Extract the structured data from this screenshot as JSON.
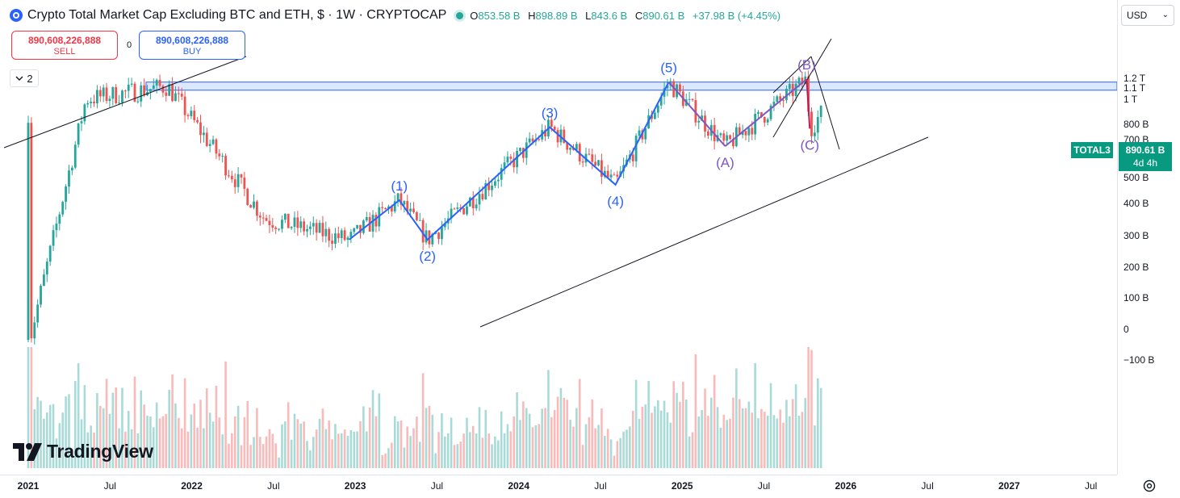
{
  "header": {
    "title": "Crypto Total Market Cap Excluding BTC and ETH, $ · 1W · CRYPTOCAP",
    "ohlc": [
      {
        "key": "O",
        "value": "853.58 B"
      },
      {
        "key": "H",
        "value": "898.89 B"
      },
      {
        "key": "L",
        "value": "843.6 B"
      },
      {
        "key": "C",
        "value": "890.61 B"
      }
    ],
    "change": "+37.98 B (+4.45%)"
  },
  "trade": {
    "sell_price": "890,608,226,888",
    "sell_label": "SELL",
    "spread": "0",
    "buy_price": "890,608,226,888",
    "buy_label": "BUY"
  },
  "indicators_toggle": {
    "icon": "chevron-down-icon",
    "count": "2"
  },
  "branding": {
    "logo_text": "TradingView",
    "logo_icon": "tradingview-logo-icon"
  },
  "price_scale": {
    "currency": "USD",
    "ticks": [
      "1.2 T",
      "1.1 T",
      "1 T",
      "800 B",
      "700 B",
      "600 B",
      "500 B",
      "400 B",
      "300 B",
      "200 B",
      "100 B",
      "0",
      "−100 B"
    ]
  },
  "last_price": {
    "symbol": "TOTAL3",
    "value": "890.61 B",
    "countdown": "4d 4h"
  },
  "time_axis": {
    "ticks": [
      {
        "label": "2021",
        "year": true
      },
      {
        "label": "Jul",
        "year": false
      },
      {
        "label": "2022",
        "year": true
      },
      {
        "label": "Jul",
        "year": false
      },
      {
        "label": "2023",
        "year": true
      },
      {
        "label": "Jul",
        "year": false
      },
      {
        "label": "2024",
        "year": true
      },
      {
        "label": "Jul",
        "year": false
      },
      {
        "label": "2025",
        "year": true
      },
      {
        "label": "Jul",
        "year": false
      },
      {
        "label": "2026",
        "year": true
      },
      {
        "label": "Jul",
        "year": false
      },
      {
        "label": "2027",
        "year": true
      },
      {
        "label": "Jul",
        "year": false
      }
    ]
  },
  "colors": {
    "up": "#26a69a",
    "down": "#ef5350",
    "wave_main": "#2962ff",
    "wave_correction": "#7e57c2",
    "wave_b_leg": "#c2185b",
    "zone_fill": "#cfe0ff",
    "zone_border": "#2962ff",
    "trendline": "#131722",
    "badge": "#089981"
  },
  "chart_data": {
    "type": "candlestick",
    "interval": "1W",
    "x_range": [
      "2021-01",
      "2027-09"
    ],
    "y_scale": "log",
    "y_range_B": [
      270,
      1290
    ],
    "key_points": [
      {
        "date": "2021-01-04",
        "value_B": 120
      },
      {
        "date": "2021-05-10",
        "value_B": 1000
      },
      {
        "date": "2021-11-08",
        "value_B": 1120
      },
      {
        "date": "2022-06-13",
        "value_B": 350
      },
      {
        "date": "2022-12-19",
        "value_B": 290
      },
      {
        "date": "2023-04-10",
        "value_B": 410
      },
      {
        "date": "2023-06-12",
        "value_B": 290
      },
      {
        "date": "2024-03-11",
        "value_B": 780
      },
      {
        "date": "2024-08-05",
        "value_B": 470
      },
      {
        "date": "2024-12-02",
        "value_B": 1160
      },
      {
        "date": "2025-04-07",
        "value_B": 660
      },
      {
        "date": "2025-10-06",
        "value_B": 1190
      },
      {
        "date": "2025-10-13",
        "value_B": 770
      },
      {
        "date": "2025-11-10",
        "value_B": 890.61
      }
    ],
    "volume_panel": true,
    "annotations": {
      "impulse_wave": [
        {
          "label": "(1)",
          "date": "2023-04-10",
          "value_B": 410
        },
        {
          "label": "(2)",
          "date": "2023-06-12",
          "value_B": 290
        },
        {
          "label": "(3)",
          "date": "2024-03-11",
          "value_B": 780
        },
        {
          "label": "(4)",
          "date": "2024-08-05",
          "value_B": 470
        },
        {
          "label": "(5)",
          "date": "2024-12-02",
          "value_B": 1160
        }
      ],
      "correction_wave": [
        {
          "label": "(A)",
          "date": "2025-04-07",
          "value_B": 660
        },
        {
          "label": "(B)",
          "date": "2025-10-06",
          "value_B": 1190
        },
        {
          "label": "(C)",
          "date": "2025-10-13",
          "value_B": 770
        }
      ],
      "resistance_zone_B": [
        1080,
        1160
      ]
    }
  }
}
